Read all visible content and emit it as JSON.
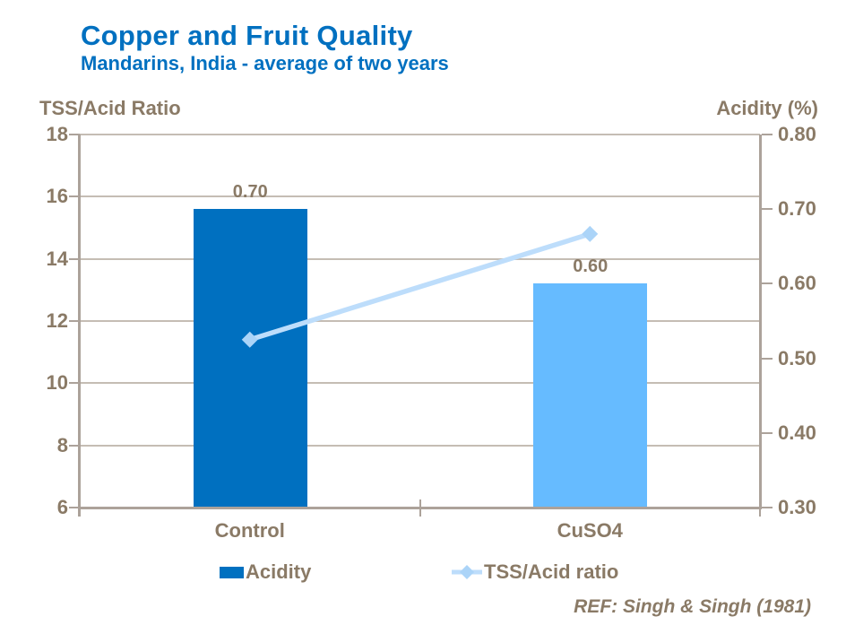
{
  "header": {
    "title": "Copper and Fruit Quality",
    "subtitle": "Mandarins, India - average of two years"
  },
  "footer": {
    "ref": "REF: Singh & Singh (1981)"
  },
  "colors": {
    "title_blue": "#0070C0",
    "text_brown": "#8A7A66",
    "grid_line": "#C5BDB4",
    "axis_line": "#ACA29A",
    "bar_control": "#0070C0",
    "bar_cuso4": "#66BBFF",
    "tss_line": "#BDDDFB"
  },
  "chart_data": {
    "type": "combo",
    "categories": [
      "Control",
      "CuSO4"
    ],
    "series": [
      {
        "name": "Acidity",
        "type": "bar",
        "axis": "right",
        "values": [
          0.7,
          0.6
        ],
        "data_labels": [
          "0.70",
          "0.60"
        ],
        "point_colors": [
          "#0070C0",
          "#66BBFF"
        ]
      },
      {
        "name": "TSS/Acid ratio",
        "type": "line",
        "axis": "left",
        "values": [
          11.4,
          14.8
        ],
        "color": "#BDDDFB",
        "marker": "diamond",
        "marker_color": "#ABD4F8"
      }
    ],
    "left_axis": {
      "label": "TSS/Acid Ratio",
      "min": 6,
      "max": 18,
      "ticks": [
        18,
        16,
        14,
        12,
        10,
        8,
        6
      ]
    },
    "right_axis": {
      "label": "Acidity (%)",
      "min": 0.3,
      "max": 0.8,
      "ticks": [
        "0.80",
        "0.70",
        "0.60",
        "0.50",
        "0.40",
        "0.30"
      ]
    },
    "grid": true,
    "legend_position": "bottom"
  }
}
